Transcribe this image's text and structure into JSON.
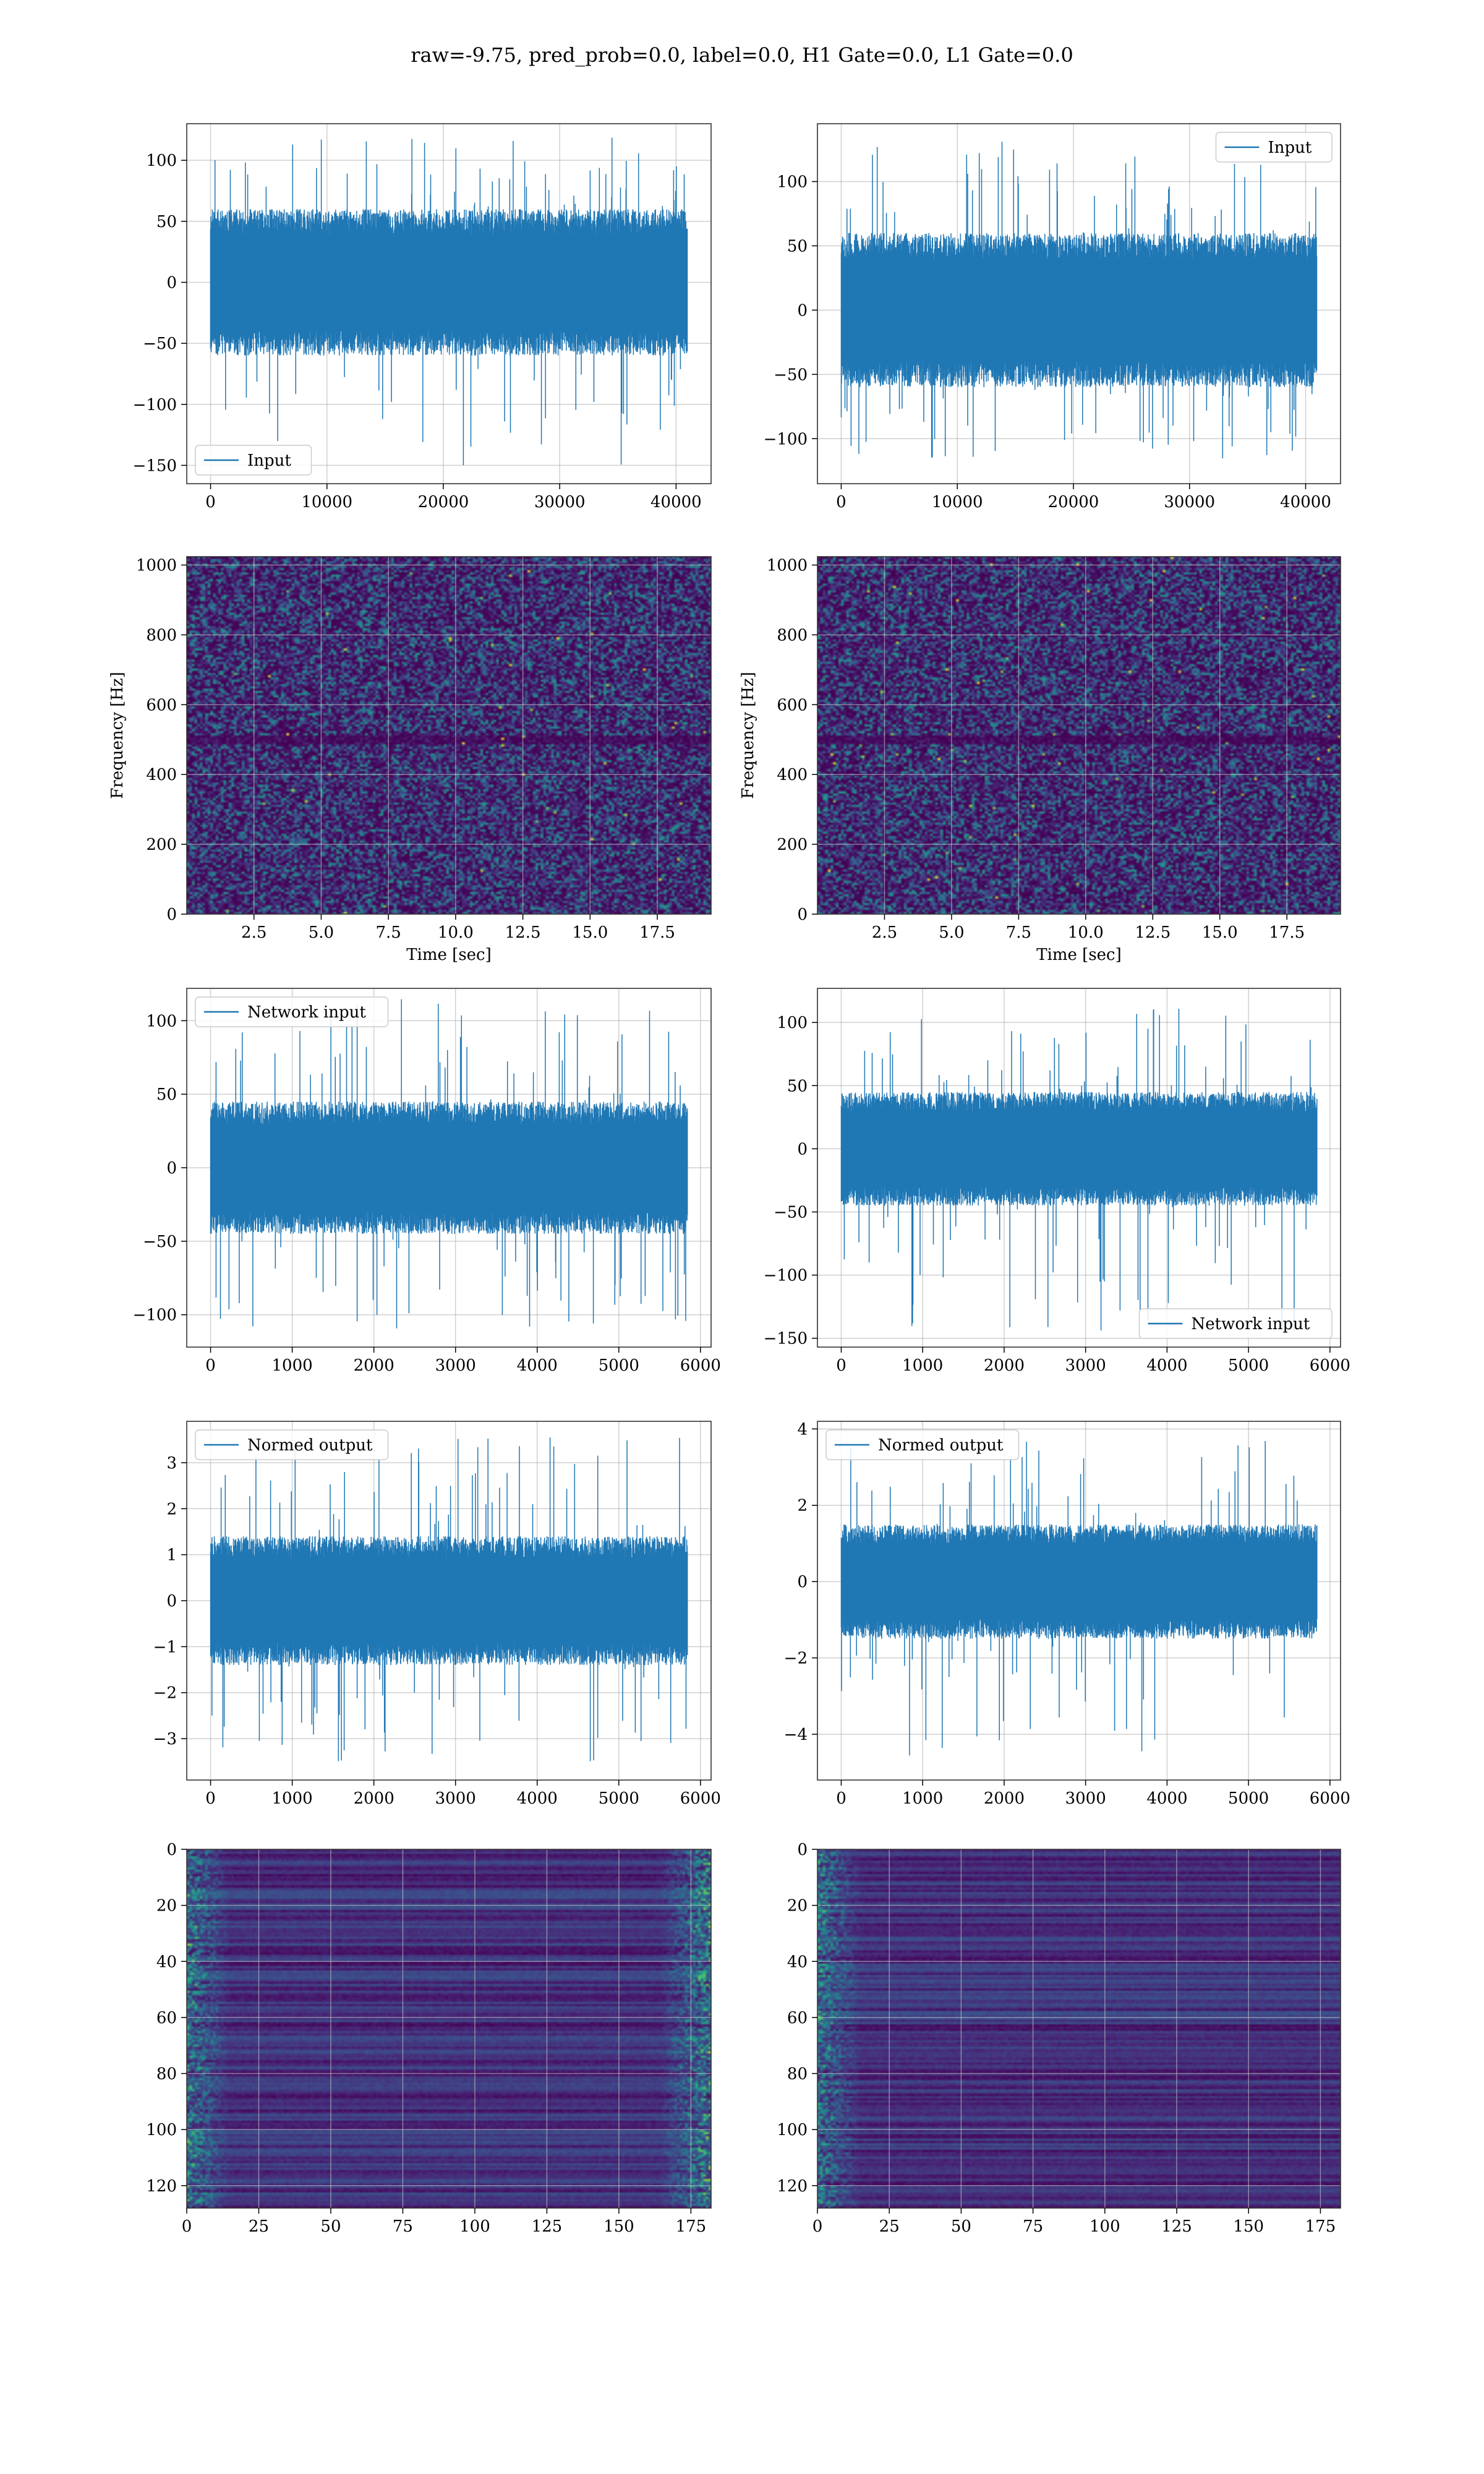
{
  "figure": {
    "title": "raw=-9.75, pred_prob=0.0, label=0.0, H1 Gate=0.0, L1 Gate=0.0"
  },
  "colors": {
    "line": "#1f77b4",
    "grid": "#b0b0b0",
    "frame": "#333333",
    "viridis_low": "#440154",
    "viridis_mid": "#21918c",
    "viridis_high": "#fde725"
  },
  "chart_data": [
    {
      "id": "input-h1",
      "type": "line",
      "legend": "Input",
      "legend_loc": "lower-left",
      "xlim": [
        -2048,
        43008
      ],
      "ylim": [
        -165,
        130
      ],
      "xticks": [
        0,
        10000,
        20000,
        30000,
        40000
      ],
      "yticks": [
        -150,
        -100,
        -50,
        0,
        50,
        100
      ],
      "xticklabels": [
        "0",
        "10000",
        "20000",
        "30000",
        "40000"
      ],
      "yticklabels": [
        "−150",
        "−100",
        "−50",
        "0",
        "50",
        "100"
      ],
      "x_range": [
        0,
        40960
      ],
      "band": 60,
      "peak_max": 120,
      "peak_min": -152,
      "grid": true,
      "xlabel": "",
      "ylabel": ""
    },
    {
      "id": "input-l1",
      "type": "line",
      "legend": "Input",
      "legend_loc": "upper-right",
      "xlim": [
        -2048,
        43008
      ],
      "ylim": [
        -135,
        145
      ],
      "xticks": [
        0,
        10000,
        20000,
        30000,
        40000
      ],
      "yticks": [
        -100,
        -50,
        0,
        50,
        100
      ],
      "xticklabels": [
        "0",
        "10000",
        "20000",
        "30000",
        "40000"
      ],
      "yticklabels": [
        "−100",
        "−50",
        "0",
        "50",
        "100"
      ],
      "x_range": [
        0,
        40960
      ],
      "band": 60,
      "peak_max": 135,
      "peak_min": -122,
      "grid": true,
      "xlabel": "",
      "ylabel": ""
    },
    {
      "id": "spec-h1",
      "type": "heatmap",
      "colormap": "viridis",
      "xlim": [
        0,
        19.5
      ],
      "ylim": [
        0,
        1024
      ],
      "xticks": [
        2.5,
        5.0,
        7.5,
        10.0,
        12.5,
        15.0,
        17.5
      ],
      "yticks": [
        0,
        200,
        400,
        600,
        800,
        1000
      ],
      "xticklabels": [
        "2.5",
        "5.0",
        "7.5",
        "10.0",
        "12.5",
        "15.0",
        "17.5"
      ],
      "yticklabels": [
        "0",
        "200",
        "400",
        "600",
        "800",
        "1000"
      ],
      "grid": true,
      "xlabel": "Time [sec]",
      "ylabel": "Frequency [Hz]"
    },
    {
      "id": "spec-l1",
      "type": "heatmap",
      "colormap": "viridis",
      "xlim": [
        0,
        19.5
      ],
      "ylim": [
        0,
        1024
      ],
      "xticks": [
        2.5,
        5.0,
        7.5,
        10.0,
        12.5,
        15.0,
        17.5
      ],
      "yticks": [
        0,
        200,
        400,
        600,
        800,
        1000
      ],
      "xticklabels": [
        "2.5",
        "5.0",
        "7.5",
        "10.0",
        "12.5",
        "15.0",
        "17.5"
      ],
      "yticklabels": [
        "0",
        "200",
        "400",
        "600",
        "800",
        "1000"
      ],
      "grid": true,
      "xlabel": "Time [sec]",
      "ylabel": "Frequency [Hz]"
    },
    {
      "id": "net-h1",
      "type": "line",
      "legend": "Network input",
      "legend_loc": "upper-left",
      "xlim": [
        -292,
        6130
      ],
      "ylim": [
        -122,
        122
      ],
      "xticks": [
        0,
        1000,
        2000,
        3000,
        4000,
        5000,
        6000
      ],
      "yticks": [
        -100,
        -50,
        0,
        50,
        100
      ],
      "xticklabels": [
        "0",
        "1000",
        "2000",
        "3000",
        "4000",
        "5000",
        "6000"
      ],
      "yticklabels": [
        "−100",
        "−50",
        "0",
        "50",
        "100"
      ],
      "x_range": [
        0,
        5840
      ],
      "band": 45,
      "peak_max": 115,
      "peak_min": -110,
      "grid": true,
      "xlabel": "",
      "ylabel": ""
    },
    {
      "id": "net-l1",
      "type": "line",
      "legend": "Network input",
      "legend_loc": "lower-right",
      "xlim": [
        -292,
        6130
      ],
      "ylim": [
        -157,
        127
      ],
      "xticks": [
        0,
        1000,
        2000,
        3000,
        4000,
        5000,
        6000
      ],
      "yticks": [
        -150,
        -100,
        -50,
        0,
        50,
        100
      ],
      "xticklabels": [
        "0",
        "1000",
        "2000",
        "3000",
        "4000",
        "5000",
        "6000"
      ],
      "yticklabels": [
        "−150",
        "−100",
        "−50",
        "0",
        "50",
        "100"
      ],
      "x_range": [
        0,
        5840
      ],
      "band": 45,
      "peak_max": 115,
      "peak_min": -145,
      "grid": true,
      "xlabel": "",
      "ylabel": ""
    },
    {
      "id": "norm-h1",
      "type": "line",
      "legend": "Normed output",
      "legend_loc": "upper-left",
      "xlim": [
        -292,
        6130
      ],
      "ylim": [
        -3.9,
        3.9
      ],
      "xticks": [
        0,
        1000,
        2000,
        3000,
        4000,
        5000,
        6000
      ],
      "yticks": [
        -3,
        -2,
        -1,
        0,
        1,
        2,
        3
      ],
      "xticklabels": [
        "0",
        "1000",
        "2000",
        "3000",
        "4000",
        "5000",
        "6000"
      ],
      "yticklabels": [
        "−3",
        "−2",
        "−1",
        "0",
        "1",
        "2",
        "3"
      ],
      "x_range": [
        0,
        5840
      ],
      "band": 1.4,
      "peak_max": 3.6,
      "peak_min": -3.5,
      "grid": true,
      "xlabel": "",
      "ylabel": ""
    },
    {
      "id": "norm-l1",
      "type": "line",
      "legend": "Normed output",
      "legend_loc": "upper-left",
      "xlim": [
        -292,
        6130
      ],
      "ylim": [
        -5.2,
        4.2
      ],
      "xticks": [
        0,
        1000,
        2000,
        3000,
        4000,
        5000,
        6000
      ],
      "yticks": [
        -4,
        -2,
        0,
        2,
        4
      ],
      "xticklabels": [
        "0",
        "1000",
        "2000",
        "3000",
        "4000",
        "5000",
        "6000"
      ],
      "yticklabels": [
        "−4",
        "−2",
        "0",
        "2",
        "4"
      ],
      "x_range": [
        0,
        5840
      ],
      "band": 1.5,
      "peak_max": 3.8,
      "peak_min": -4.6,
      "grid": true,
      "xlabel": "",
      "ylabel": ""
    },
    {
      "id": "feat-h1",
      "type": "heatmap",
      "colormap": "viridis",
      "xlim": [
        0,
        182
      ],
      "ylim": [
        128,
        0
      ],
      "xticks": [
        0,
        25,
        50,
        75,
        100,
        125,
        150,
        175
      ],
      "yticks": [
        0,
        20,
        40,
        60,
        80,
        100,
        120
      ],
      "xticklabels": [
        "0",
        "25",
        "50",
        "75",
        "100",
        "125",
        "150",
        "175"
      ],
      "yticklabels": [
        "0",
        "20",
        "40",
        "60",
        "80",
        "100",
        "120"
      ],
      "grid": true,
      "xlabel": "",
      "ylabel": ""
    },
    {
      "id": "feat-l1",
      "type": "heatmap",
      "colormap": "viridis",
      "xlim": [
        0,
        182
      ],
      "ylim": [
        128,
        0
      ],
      "xticks": [
        0,
        25,
        50,
        75,
        100,
        125,
        150,
        175
      ],
      "yticks": [
        0,
        20,
        40,
        60,
        80,
        100,
        120
      ],
      "xticklabels": [
        "0",
        "25",
        "50",
        "75",
        "100",
        "125",
        "150",
        "175"
      ],
      "yticklabels": [
        "0",
        "20",
        "40",
        "60",
        "80",
        "100",
        "120"
      ],
      "grid": true,
      "xlabel": "",
      "ylabel": ""
    }
  ]
}
